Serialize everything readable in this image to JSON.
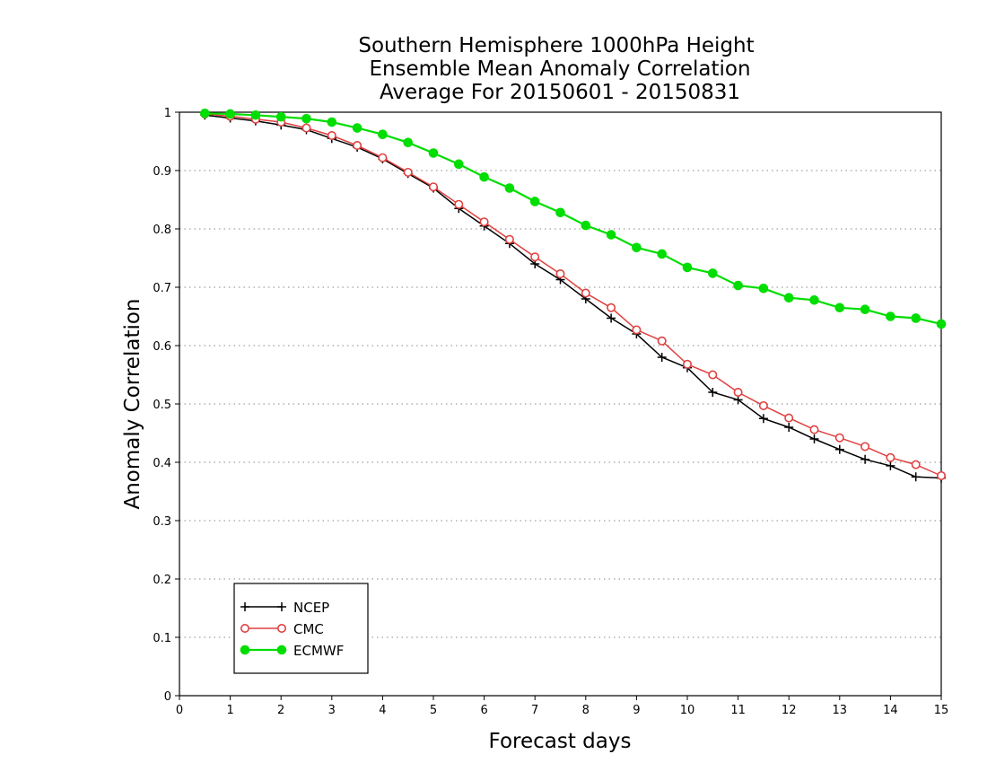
{
  "chart_data": {
    "type": "line",
    "title": [
      "Southern Hemisphere 1000hPa Height",
      "Ensemble Mean Anomaly Correlation",
      "Average For 20150601 - 20150831"
    ],
    "xlabel": "Forecast days",
    "ylabel": "Anomaly Correlation",
    "xlim": [
      0,
      15
    ],
    "ylim": [
      0,
      1
    ],
    "xticks": [
      "0",
      "1",
      "2",
      "3",
      "4",
      "5",
      "6",
      "7",
      "8",
      "9",
      "10",
      "11",
      "12",
      "13",
      "14",
      "15"
    ],
    "yticks": [
      "0",
      "0.1",
      "0.2",
      "0.3",
      "0.4",
      "0.5",
      "0.6",
      "0.7",
      "0.8",
      "0.9",
      "1"
    ],
    "grid": "horizontal dotted",
    "legend_position": "bottom-left",
    "x": [
      0.5,
      1,
      1.5,
      2,
      2.5,
      3,
      3.5,
      4,
      4.5,
      5,
      5.5,
      6,
      6.5,
      7,
      7.5,
      8,
      8.5,
      9,
      9.5,
      10,
      10.5,
      11,
      11.5,
      12,
      12.5,
      13,
      13.5,
      14,
      14.5,
      15
    ],
    "series": [
      {
        "name": "NCEP",
        "color": "#000000",
        "marker": "plus",
        "values": [
          0.995,
          0.99,
          0.985,
          0.978,
          0.97,
          0.955,
          0.94,
          0.92,
          0.895,
          0.87,
          0.835,
          0.805,
          0.775,
          0.74,
          0.713,
          0.68,
          0.647,
          0.62,
          0.58,
          0.562,
          0.52,
          0.507,
          0.475,
          0.46,
          0.44,
          0.422,
          0.405,
          0.394,
          0.375,
          0.373
        ]
      },
      {
        "name": "CMC",
        "color": "#e04040",
        "marker": "open-circle",
        "values": [
          0.997,
          0.993,
          0.988,
          0.983,
          0.973,
          0.96,
          0.943,
          0.922,
          0.897,
          0.872,
          0.842,
          0.812,
          0.782,
          0.752,
          0.723,
          0.69,
          0.665,
          0.627,
          0.608,
          0.568,
          0.55,
          0.52,
          0.497,
          0.476,
          0.456,
          0.442,
          0.427,
          0.408,
          0.396,
          0.377
        ]
      },
      {
        "name": "ECMWF",
        "color": "#00dd00",
        "marker": "filled-circle",
        "values": [
          0.998,
          0.997,
          0.995,
          0.992,
          0.989,
          0.983,
          0.973,
          0.962,
          0.948,
          0.93,
          0.911,
          0.889,
          0.87,
          0.847,
          0.828,
          0.806,
          0.79,
          0.768,
          0.757,
          0.734,
          0.724,
          0.703,
          0.698,
          0.682,
          0.678,
          0.665,
          0.662,
          0.65,
          0.647,
          0.637
        ]
      }
    ]
  }
}
